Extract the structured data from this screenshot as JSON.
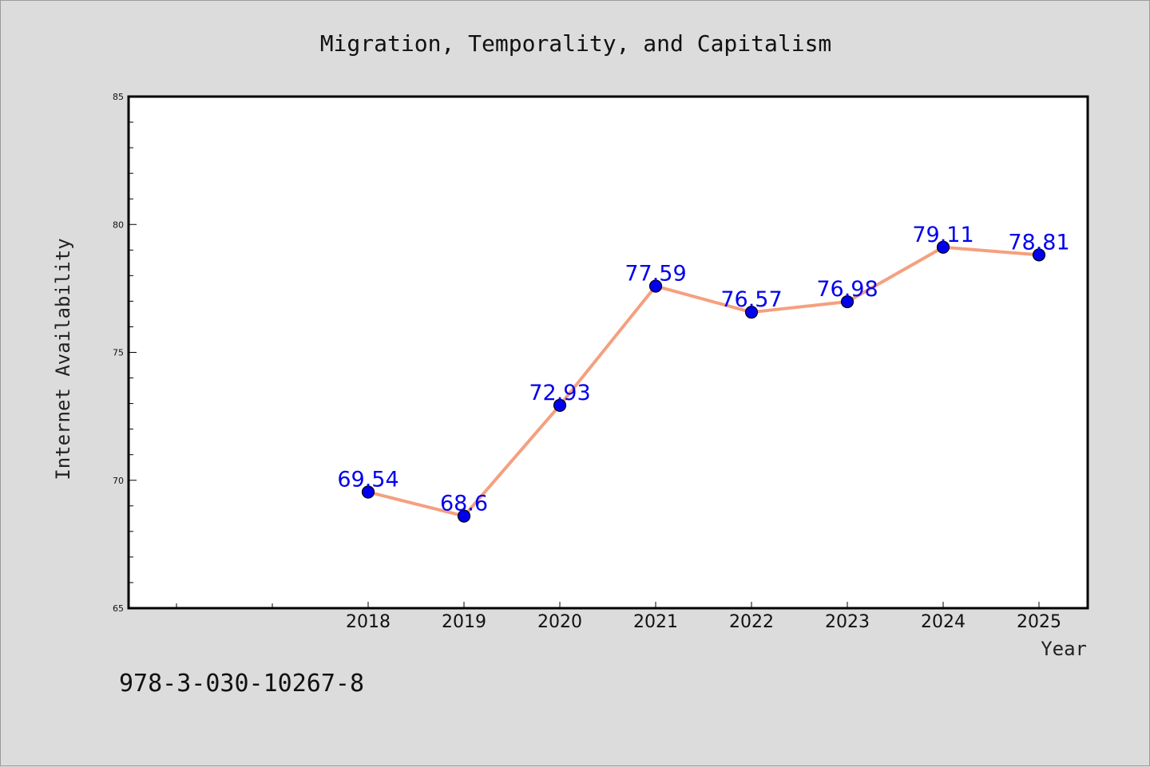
{
  "chart_data": {
    "type": "line",
    "title": "Migration, Temporality, and Capitalism",
    "xlabel": "Year",
    "ylabel": "Internet Availability",
    "ylim": [
      65,
      85
    ],
    "yticks": [
      65,
      70,
      75,
      80,
      85
    ],
    "x_tick_labels": [
      "2018",
      "2019",
      "2020",
      "2021",
      "2022",
      "2023",
      "2024",
      "2025"
    ],
    "x": [
      2018,
      2019,
      2020,
      2021,
      2022,
      2023,
      2024,
      2025
    ],
    "values": [
      69.54,
      68.6,
      72.93,
      77.59,
      76.57,
      76.98,
      79.11,
      78.81
    ],
    "data_labels": [
      "69.54",
      "68.6",
      "72.93",
      "77.59",
      "76.57",
      "76.98",
      "79.11",
      "78.81"
    ],
    "grid": false,
    "legend": "none",
    "line_color": "#f4a07f",
    "marker_color": "#0000ee",
    "label_color": "#0000ee"
  },
  "footnote": "978-3-030-10267-8"
}
